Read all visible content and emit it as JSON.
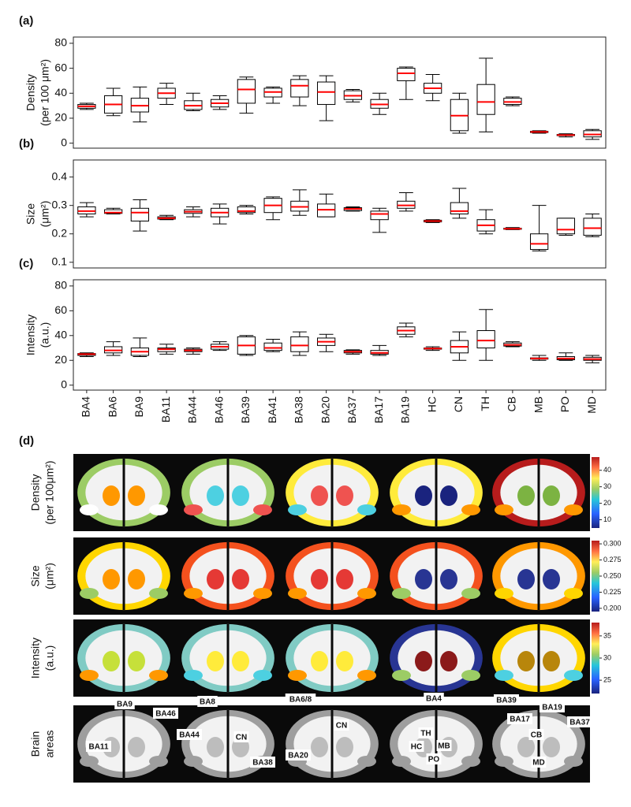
{
  "chart_data": [
    {
      "type": "box",
      "panel_label": "(a)",
      "ylabel": [
        "Density",
        "(per 100 μm²)"
      ],
      "ylim": [
        -4,
        85
      ],
      "yticks": [
        0,
        20,
        40,
        60,
        80
      ],
      "box_color": "#000000",
      "median_color": "#ff0000",
      "whisker_low": [
        27,
        22,
        17,
        31,
        26,
        27,
        24,
        32,
        30,
        18,
        33,
        23,
        35,
        34,
        8,
        9,
        30,
        8,
        5,
        3
      ],
      "q1": [
        28,
        24,
        25,
        36,
        27,
        29,
        32,
        37,
        37,
        31,
        35,
        28,
        50,
        40,
        10,
        23,
        31,
        8.5,
        6,
        5
      ],
      "median": [
        29.5,
        31,
        30,
        40,
        30,
        32,
        43,
        41,
        46,
        41,
        38,
        31,
        56,
        44,
        22,
        33,
        33,
        9,
        6.5,
        7
      ],
      "q3": [
        31,
        38,
        36,
        44,
        34,
        35,
        51,
        44,
        51,
        49,
        42,
        35,
        60,
        48,
        35,
        47,
        36,
        9.5,
        7,
        10
      ],
      "whisker_high": [
        32,
        44,
        45,
        48,
        40,
        38,
        53,
        45,
        54,
        54,
        43,
        40,
        61,
        55,
        40,
        68,
        37,
        10,
        7.5,
        11
      ]
    },
    {
      "type": "box",
      "panel_label": "(b)",
      "ylabel": [
        "Size",
        "(μm²)"
      ],
      "ylim": [
        0.08,
        0.46
      ],
      "yticks": [
        0.1,
        0.2,
        0.3,
        0.4
      ],
      "box_color": "#000000",
      "median_color": "#ff0000",
      "whisker_low": [
        0.26,
        0.27,
        0.21,
        0.25,
        0.26,
        0.235,
        0.27,
        0.25,
        0.265,
        0.26,
        0.28,
        0.205,
        0.28,
        0.24,
        0.255,
        0.2,
        0.215,
        0.14,
        0.195,
        0.19
      ],
      "q1": [
        0.27,
        0.272,
        0.245,
        0.252,
        0.272,
        0.26,
        0.275,
        0.275,
        0.28,
        0.26,
        0.282,
        0.25,
        0.29,
        0.242,
        0.27,
        0.21,
        0.216,
        0.145,
        0.2,
        0.195
      ],
      "median": [
        0.28,
        0.275,
        0.275,
        0.255,
        0.278,
        0.275,
        0.28,
        0.3,
        0.295,
        0.285,
        0.288,
        0.27,
        0.3,
        0.245,
        0.28,
        0.23,
        0.218,
        0.165,
        0.215,
        0.22
      ],
      "q3": [
        0.295,
        0.285,
        0.29,
        0.26,
        0.285,
        0.29,
        0.295,
        0.325,
        0.315,
        0.305,
        0.292,
        0.28,
        0.315,
        0.248,
        0.31,
        0.25,
        0.22,
        0.2,
        0.255,
        0.255
      ],
      "whisker_high": [
        0.31,
        0.29,
        0.32,
        0.265,
        0.295,
        0.305,
        0.3,
        0.33,
        0.355,
        0.34,
        0.295,
        0.29,
        0.345,
        0.25,
        0.36,
        0.285,
        0.222,
        0.3,
        0.255,
        0.27
      ]
    },
    {
      "type": "box",
      "panel_label": "(c)",
      "ylabel": [
        "Intensity",
        "(a.u.)"
      ],
      "ylim": [
        -4,
        85
      ],
      "yticks": [
        0,
        20,
        40,
        60,
        80
      ],
      "box_color": "#000000",
      "median_color": "#ff0000",
      "categories": [
        "BA4",
        "BA6",
        "BA9",
        "BA11",
        "BA44",
        "BA46",
        "BA39",
        "BA41",
        "BA38",
        "BA20",
        "BA37",
        "BA17",
        "BA19",
        "HC",
        "CN",
        "TH",
        "CB",
        "MB",
        "PO",
        "MD"
      ],
      "whisker_low": [
        23,
        24,
        23,
        25,
        25,
        28,
        24,
        27,
        24,
        27,
        25,
        24,
        39,
        28,
        20,
        20,
        31,
        20,
        20,
        18
      ],
      "q1": [
        24,
        26,
        24,
        27,
        27,
        29,
        25,
        28,
        27,
        32,
        26,
        25,
        41,
        29,
        26,
        30,
        31.5,
        21,
        20.5,
        20
      ],
      "median": [
        25,
        28,
        27,
        29,
        28,
        31,
        32,
        30,
        32,
        35,
        27,
        26,
        44,
        29.5,
        31,
        36,
        32.5,
        21.5,
        21.5,
        21
      ],
      "q3": [
        25.5,
        31,
        30,
        30,
        29,
        33,
        39,
        34,
        39,
        38,
        28,
        28,
        47,
        30,
        36,
        44,
        34,
        22,
        23,
        22.5
      ],
      "whisker_high": [
        26,
        35,
        38,
        33,
        30,
        35,
        40,
        37,
        43,
        41,
        28.5,
        32,
        50,
        31,
        43,
        61,
        35,
        24,
        26,
        24
      ]
    }
  ],
  "brain_panel": {
    "panel_label": "(d)",
    "rows": [
      {
        "label": [
          "Density",
          "(per 100μm²)"
        ],
        "colorbar_lim": [
          5,
          48
        ],
        "colorbar_ticks": [
          10,
          20,
          30,
          40
        ]
      },
      {
        "label": [
          "Size",
          "(μm²)"
        ],
        "colorbar_lim": [
          0.195,
          0.305
        ],
        "colorbar_ticks": [
          {
            "value": 0.2,
            "label": "0.200"
          },
          {
            "value": 0.225,
            "label": "0.225"
          },
          {
            "value": 0.25,
            "label": "0.250"
          },
          {
            "value": 0.275,
            "label": "0.275"
          },
          {
            "value": 0.3,
            "label": "0.300"
          }
        ]
      },
      {
        "label": [
          "Intensity",
          "(a.u.)"
        ],
        "colorbar_lim": [
          22,
          38
        ],
        "colorbar_ticks": [
          25,
          30,
          35
        ]
      }
    ],
    "areas_label": [
      "Brain",
      "areas"
    ],
    "areas": [
      "BA9",
      "BA46",
      "BA11",
      "BA8",
      "BA44",
      "CN",
      "BA38",
      "BA6/8",
      "CN",
      "BA20",
      "BA4",
      "TH",
      "HC",
      "MB",
      "PO",
      "BA39",
      "BA19",
      "BA17",
      "BA37",
      "CB",
      "MD"
    ]
  }
}
